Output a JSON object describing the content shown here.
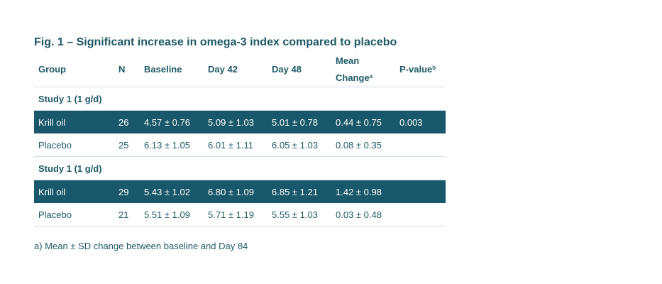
{
  "title": "Fig. 1 – Significant increase in omega-3 index compared to placebo",
  "headers": {
    "group": "Group",
    "n": "N",
    "baseline": "Baseline",
    "day42": "Day 42",
    "day48": "Day 48",
    "mean_line1": "Mean",
    "mean_line2": "Change",
    "mean_sup": "a",
    "pvalue": "P-value",
    "pvalue_sup": "b"
  },
  "sections": [
    {
      "label": "Study 1 (1 g/d)",
      "rows": [
        {
          "group": "Krill oil",
          "n": "26",
          "baseline": "4.57 ± 0.76",
          "day42": "5.09 ± 1.03",
          "day48": "5.01 ± 0.78",
          "mean_change": "0.44 ± 0.75",
          "pvalue": "0.003"
        },
        {
          "group": "Placebo",
          "n": "25",
          "baseline": "6.13 ± 1.05",
          "day42": "6.01 ± 1.11",
          "day48": "6.05 ± 1.03",
          "mean_change": "0.08 ± 0.35",
          "pvalue": ""
        }
      ]
    },
    {
      "label": "Study 1 (1 g/d)",
      "rows": [
        {
          "group": "Krill oil",
          "n": "29",
          "baseline": "5.43 ± 1.02",
          "day42": "6.80 ± 1.09",
          "day48": "6.85 ± 1.21",
          "mean_change": "1.42 ± 0.98",
          "pvalue": ""
        },
        {
          "group": "Placebo",
          "n": "21",
          "baseline": "5.51 ± 1.09",
          "day42": "5.71 ± 1.19",
          "day48": "5.55 ± 1.03",
          "mean_change": "0.03 ± 0.48",
          "pvalue": ""
        }
      ]
    }
  ],
  "footnote": "a) Mean ± SD change between baseline and Day 84",
  "colors": {
    "accent": "#1e5a66",
    "highlight_row": "#18586a",
    "divider": "#d3dfe2"
  }
}
